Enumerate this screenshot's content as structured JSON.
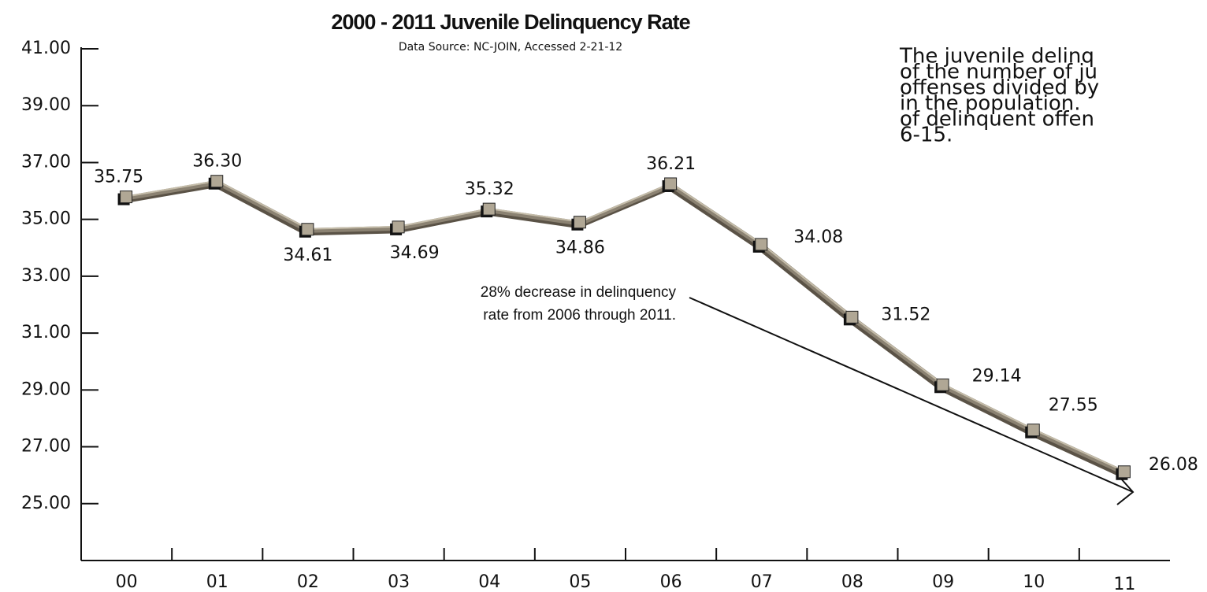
{
  "chart_data": {
    "type": "line",
    "title": "2000 - 2011 Juvenile Delinquency Rate",
    "subtitle": "Data Source: NC-JOIN, Accessed 2-21-12",
    "categories": [
      "00",
      "01",
      "02",
      "03",
      "04",
      "05",
      "06",
      "07",
      "08",
      "09",
      "10",
      "11"
    ],
    "values": [
      35.75,
      36.3,
      34.61,
      34.69,
      35.32,
      34.86,
      36.21,
      34.08,
      31.52,
      29.14,
      27.55,
      26.08
    ],
    "value_labels": [
      "35.75",
      "36.30",
      "34.61",
      "34.69",
      "35.32",
      "34.86",
      "36.21",
      "34.08",
      "31.52",
      "29.14",
      "27.55",
      "26.08"
    ],
    "color": "#8b8272",
    "ylim": [
      23,
      41
    ],
    "yticks": [
      {
        "value": 41,
        "label": "41.00"
      },
      {
        "value": 39,
        "label": "39.00"
      },
      {
        "value": 37,
        "label": "37.00"
      },
      {
        "value": 35,
        "label": "35.00"
      },
      {
        "value": 33,
        "label": "33.00"
      },
      {
        "value": 31,
        "label": "31.00"
      },
      {
        "value": 29,
        "label": "29.00"
      },
      {
        "value": 27,
        "label": "27.00"
      },
      {
        "value": 25,
        "label": "25.00"
      }
    ],
    "annotation": [
      "28% decrease in delinquency",
      "rate from 2006 through 2011."
    ],
    "note": [
      "The juvenile delinq",
      "of the number of ju",
      "offenses divided by",
      "in the population.",
      "of delinquent offen",
      "6-15."
    ]
  }
}
